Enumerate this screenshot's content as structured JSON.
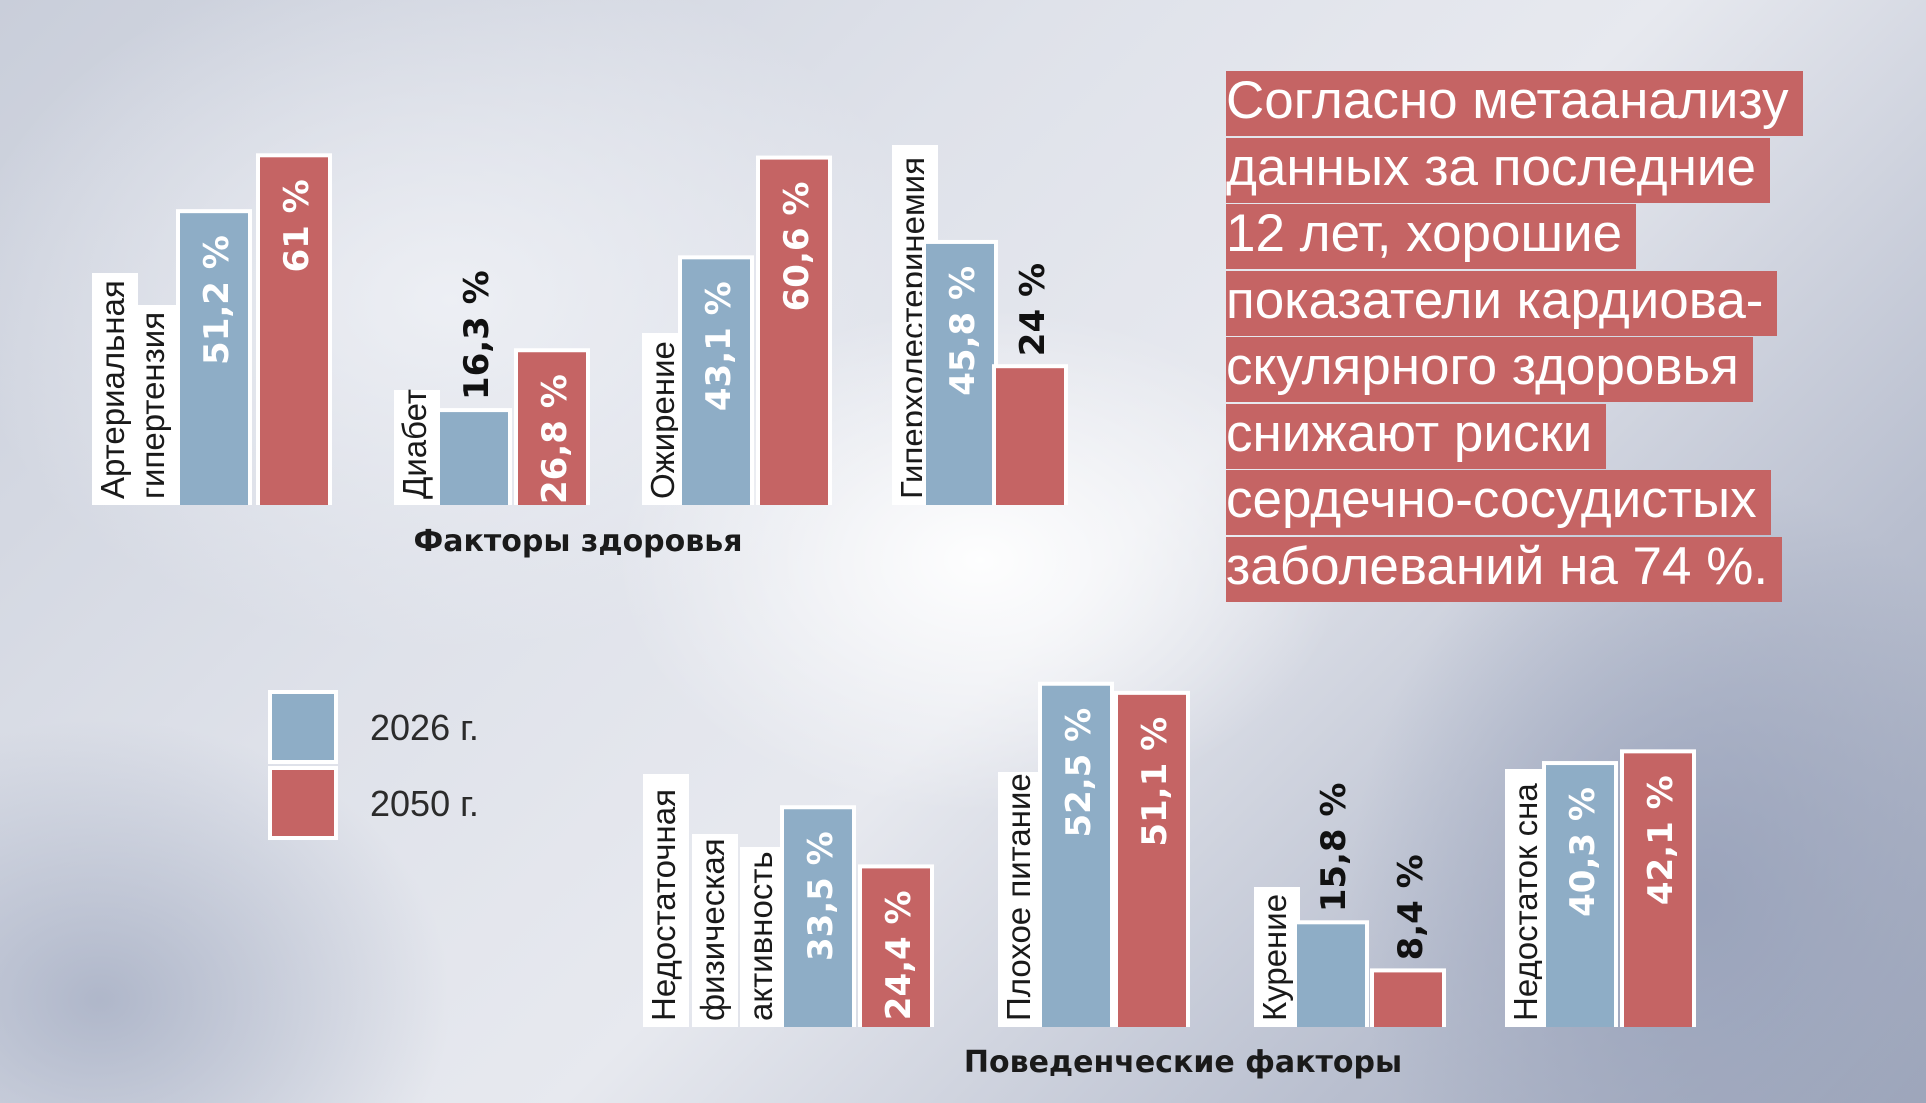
{
  "chart_data": {
    "type": "bar",
    "series": [
      {
        "name": "2026 г.",
        "color": "#8eadc6"
      },
      {
        "name": "2050 г.",
        "color": "#c56464"
      }
    ],
    "groups": [
      {
        "title": "Факторы здоровья",
        "categories": [
          {
            "label": [
              "Артериальная",
              "гипертензия"
            ],
            "values": [
              51.2,
              61
            ],
            "display": [
              "51,2 %",
              "61 %"
            ]
          },
          {
            "label": [
              "Диабет"
            ],
            "values": [
              16.3,
              26.8
            ],
            "display": [
              "16,3 %",
              "26,8 %"
            ]
          },
          {
            "label": [
              "Ожирение"
            ],
            "values": [
              43.1,
              60.6
            ],
            "display": [
              "43,1 %",
              "60,6 %"
            ]
          },
          {
            "label": [
              "Гиперхолестеринемия"
            ],
            "values": [
              45.8,
              24
            ],
            "display": [
              "45,8 %",
              "24 %"
            ]
          }
        ]
      },
      {
        "title": "Поведенческие факторы",
        "categories": [
          {
            "label": [
              "Недостаточная",
              "физическая",
              "активность"
            ],
            "values": [
              33.5,
              24.4
            ],
            "display": [
              "33,5 %",
              "24,4 %"
            ]
          },
          {
            "label": [
              "Плохое питание"
            ],
            "values": [
              52.5,
              51.1
            ],
            "display": [
              "52,5 %",
              "51,1 %"
            ]
          },
          {
            "label": [
              "Курение"
            ],
            "values": [
              15.8,
              8.4
            ],
            "display": [
              "15,8 %",
              "8,4 %"
            ]
          },
          {
            "label": [
              "Недостаток сна"
            ],
            "values": [
              40.3,
              42.1
            ],
            "display": [
              "40,3 %",
              "42,1 %"
            ]
          }
        ]
      }
    ],
    "ylim": [
      0,
      61
    ],
    "legend": "left-middle"
  },
  "callout": {
    "lines": [
      "Согласно метаанализу",
      "данных за последние",
      "12 лет, хорошие",
      "показатели кардиова-",
      "скулярного здоровья",
      "снижают риски",
      "сердечно-сосудистых",
      "заболеваний на 74 %."
    ]
  }
}
